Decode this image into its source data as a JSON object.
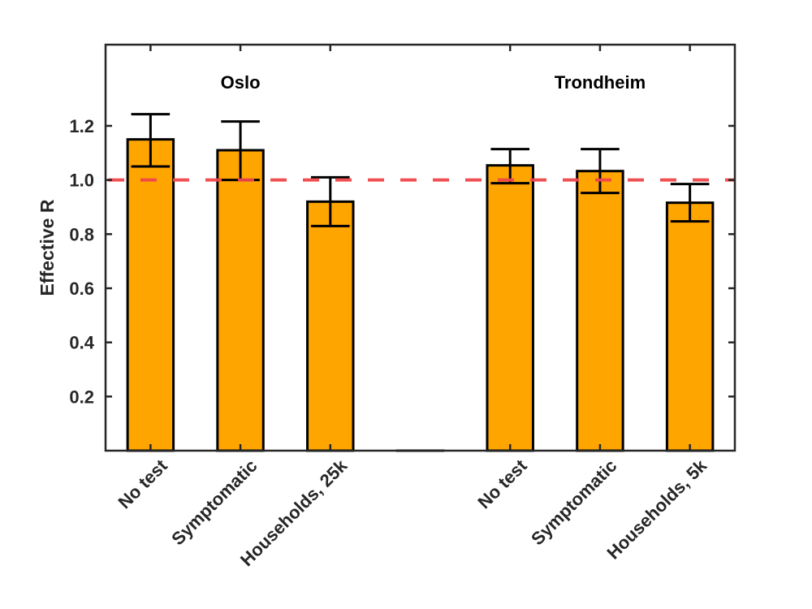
{
  "chart_data": {
    "type": "bar",
    "title": "",
    "xlabel": "",
    "ylabel": "Effective R",
    "ylim": [
      0,
      1.5
    ],
    "yticks": [
      0.2,
      0.4,
      0.6,
      0.8,
      1.0,
      1.2
    ],
    "ytick_labels": [
      "0.2",
      "0.4",
      "0.6",
      "0.8",
      "1.0",
      "1.2"
    ],
    "grid": false,
    "categories": [
      "No test",
      "Symptomatic",
      "Households, 25k",
      "",
      "No test",
      "Symptomatic",
      "Households, 5k"
    ],
    "values": [
      1.15,
      1.11,
      0.92,
      0,
      1.054,
      1.033,
      0.916
    ],
    "error_upper": [
      1.243,
      1.216,
      1.01,
      null,
      1.114,
      1.114,
      0.985
    ],
    "error_lower": [
      1.05,
      1.0,
      0.83,
      null,
      0.988,
      0.952,
      0.847
    ],
    "bar_color": "#FFA500",
    "bar_edge_color": "#000000",
    "reference_line": {
      "y": 1.0,
      "style": "dashed",
      "color": "#F0474A"
    },
    "group_labels": [
      {
        "text": "Oslo",
        "x_position": 2
      },
      {
        "text": "Trondheim",
        "x_position": 6
      }
    ]
  }
}
